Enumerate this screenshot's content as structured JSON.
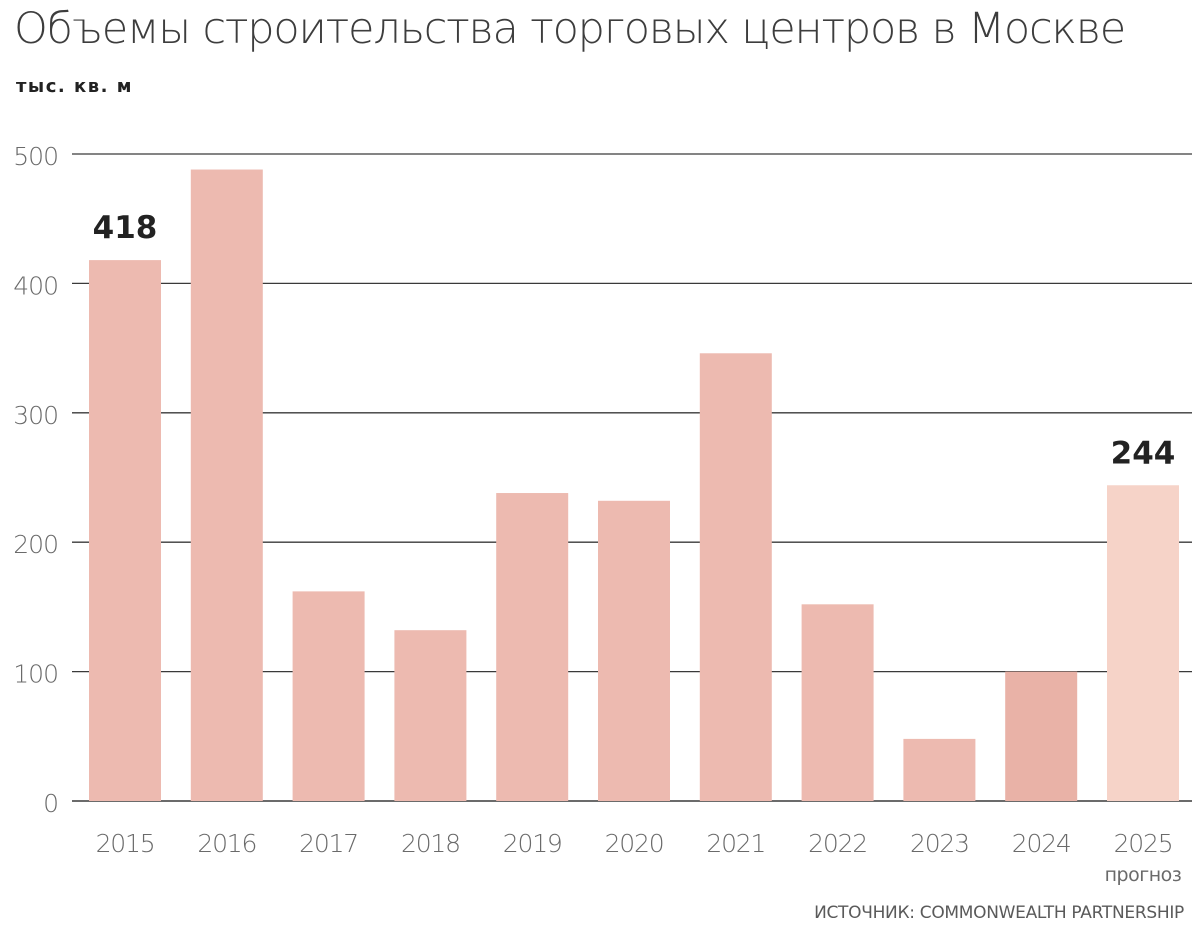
{
  "title": "Объемы строительства торговых центров в Москве",
  "unit": "тыс. кв. м",
  "source": "ИСТОЧНИК: COMMONWEALTH PARTNERSHIP",
  "colors": {
    "bar": "#edbab0",
    "bar_2024": "#e9b2a7",
    "bar_forecast": "#f6d3c8",
    "grid": "#3a3a3a",
    "tick_text": "#6a6a6a",
    "label_text": "#222222"
  },
  "chart_data": {
    "type": "bar",
    "title": "Объемы строительства торговых центров в Москве",
    "ylabel": "тыс. кв. м",
    "xlabel": "",
    "ylim": [
      0,
      500
    ],
    "yticks": [
      0,
      100,
      200,
      300,
      400,
      500
    ],
    "grid": true,
    "categories": [
      "2015",
      "2016",
      "2017",
      "2018",
      "2019",
      "2020",
      "2021",
      "2022",
      "2023",
      "2024",
      "2025"
    ],
    "category_notes": [
      "",
      "",
      "",
      "",
      "",
      "",
      "",
      "",
      "",
      "",
      "прогноз"
    ],
    "values": [
      418,
      488,
      162,
      132,
      238,
      232,
      346,
      152,
      48,
      100,
      244
    ],
    "forecast": [
      false,
      false,
      false,
      false,
      false,
      false,
      false,
      false,
      false,
      false,
      true
    ],
    "data_labels": [
      "418",
      "",
      "",
      "",
      "",
      "",
      "",
      "",
      "",
      "",
      "244"
    ]
  }
}
